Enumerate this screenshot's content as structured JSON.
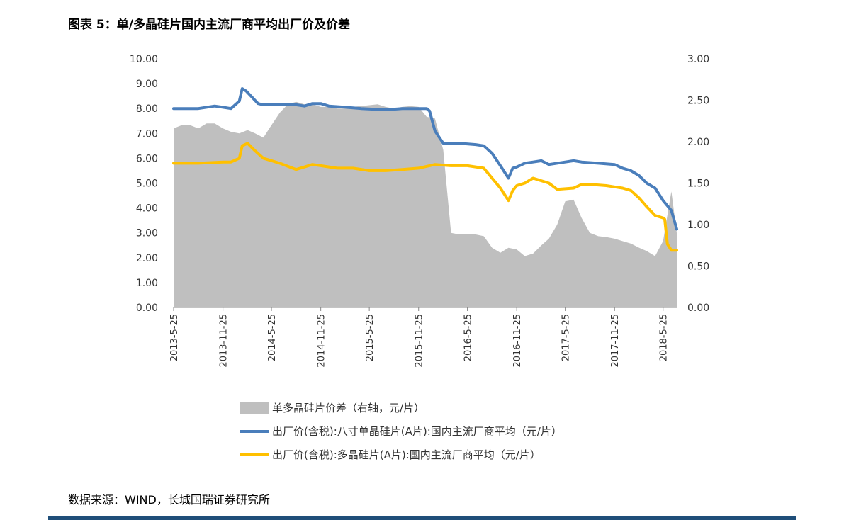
{
  "header": {
    "title": "图表 5：单/多晶硅片国内主流厂商平均出厂价及价差"
  },
  "footer": {
    "source": "数据来源：WIND，长城国瑞证券研究所"
  },
  "chart_data": {
    "type": "line",
    "x_tick_labels": [
      "2013-5-25",
      "2013-11-25",
      "2014-5-25",
      "2014-11-25",
      "2015-5-25",
      "2015-11-25",
      "2016-5-25",
      "2016-11-25",
      "2017-5-25",
      "2017-11-25",
      "2018-5-25"
    ],
    "x_start": "2013-5-25",
    "x_end": "2018-7-15",
    "y_left": {
      "min": 0,
      "max": 10,
      "ticks": [
        "0.00",
        "1.00",
        "2.00",
        "3.00",
        "4.00",
        "5.00",
        "6.00",
        "7.00",
        "8.00",
        "9.00",
        "10.00"
      ]
    },
    "y_right": {
      "min": 0,
      "max": 3,
      "ticks": [
        "0.00",
        "0.50",
        "1.00",
        "1.50",
        "2.00",
        "2.50",
        "3.00"
      ]
    },
    "legend_position": "bottom",
    "grid": false,
    "series": [
      {
        "name": "单多晶硅片价差（右轴，元/片）",
        "type": "area",
        "axis": "right",
        "color": "#bfbfbf",
        "x": [
          "2013-5-25",
          "2013-6-25",
          "2013-7-25",
          "2013-8-25",
          "2013-9-25",
          "2013-10-25",
          "2013-11-25",
          "2013-12-25",
          "2014-1-25",
          "2014-2-25",
          "2014-3-25",
          "2014-4-25",
          "2014-5-25",
          "2014-6-25",
          "2014-7-25",
          "2014-8-25",
          "2014-9-25",
          "2014-10-25",
          "2014-11-25",
          "2014-12-25",
          "2015-1-25",
          "2015-2-25",
          "2015-3-25",
          "2015-4-25",
          "2015-5-25",
          "2015-6-25",
          "2015-7-25",
          "2015-8-25",
          "2015-9-25",
          "2015-10-25",
          "2015-11-25",
          "2015-12-25",
          "2016-1-25",
          "2016-2-25",
          "2016-3-25",
          "2016-4-25",
          "2016-5-25",
          "2016-6-25",
          "2016-7-25",
          "2016-8-25",
          "2016-9-25",
          "2016-10-25",
          "2016-11-25",
          "2016-12-25",
          "2017-1-25",
          "2017-2-25",
          "2017-3-25",
          "2017-4-25",
          "2017-5-25",
          "2017-6-25",
          "2017-7-25",
          "2017-8-25",
          "2017-9-25",
          "2017-10-25",
          "2017-11-25",
          "2017-12-25",
          "2018-1-25",
          "2018-2-25",
          "2018-3-25",
          "2018-4-25",
          "2018-5-25",
          "2018-6-25",
          "2018-7-15"
        ],
        "values": [
          2.16,
          2.2,
          2.2,
          2.16,
          2.22,
          2.22,
          2.16,
          2.12,
          2.1,
          2.14,
          2.1,
          2.05,
          2.2,
          2.35,
          2.45,
          2.48,
          2.45,
          2.45,
          2.42,
          2.42,
          2.4,
          2.4,
          2.42,
          2.43,
          2.44,
          2.45,
          2.42,
          2.4,
          2.42,
          2.43,
          2.42,
          2.3,
          2.28,
          1.9,
          0.9,
          0.88,
          0.88,
          0.88,
          0.86,
          0.72,
          0.66,
          0.72,
          0.7,
          0.62,
          0.65,
          0.75,
          0.83,
          1.0,
          1.28,
          1.3,
          1.08,
          0.9,
          0.86,
          0.85,
          0.83,
          0.8,
          0.77,
          0.72,
          0.68,
          0.62,
          0.8,
          1.4,
          0.9
        ]
      },
      {
        "name": "出厂价(含税):八寸单晶硅片(A片):国内主流厂商平均（元/片）",
        "type": "line",
        "axis": "left",
        "color": "#4a7ebb",
        "x": [
          "2013-5-25",
          "2013-7-25",
          "2013-8-25",
          "2013-10-25",
          "2013-11-25",
          "2013-12-25",
          "2014-1-25",
          "2014-2-5",
          "2014-2-20",
          "2014-3-10",
          "2014-4-5",
          "2014-4-25",
          "2014-5-25",
          "2014-8-25",
          "2014-9-25",
          "2014-10-25",
          "2014-11-25",
          "2014-12-25",
          "2015-2-25",
          "2015-4-25",
          "2015-7-25",
          "2015-9-25",
          "2015-12-25",
          "2016-1-5",
          "2016-1-25",
          "2016-2-25",
          "2016-4-25",
          "2016-6-25",
          "2016-7-25",
          "2016-8-25",
          "2016-9-25",
          "2016-10-25",
          "2016-11-10",
          "2016-11-25",
          "2016-12-25",
          "2017-1-25",
          "2017-2-25",
          "2017-3-25",
          "2017-5-25",
          "2017-6-25",
          "2017-7-25",
          "2017-9-25",
          "2017-11-25",
          "2017-12-25",
          "2018-1-25",
          "2018-2-25",
          "2018-3-25",
          "2018-4-25",
          "2018-5-25",
          "2018-6-25",
          "2018-7-15"
        ],
        "values": [
          8.0,
          8.0,
          8.0,
          8.1,
          8.05,
          8.0,
          8.3,
          8.8,
          8.7,
          8.5,
          8.2,
          8.15,
          8.15,
          8.15,
          8.1,
          8.2,
          8.2,
          8.1,
          8.05,
          8.0,
          7.95,
          8.0,
          8.0,
          7.9,
          7.1,
          6.6,
          6.6,
          6.55,
          6.5,
          6.2,
          5.7,
          5.2,
          5.6,
          5.65,
          5.8,
          5.85,
          5.9,
          5.75,
          5.85,
          5.9,
          5.85,
          5.8,
          5.75,
          5.6,
          5.5,
          5.3,
          5.0,
          4.8,
          4.3,
          3.9,
          3.15
        ]
      },
      {
        "name": "出厂价(含税):多晶硅片(A片):国内主流厂商平均（元/片）",
        "type": "line",
        "axis": "left",
        "color": "#ffc000",
        "x": [
          "2013-5-25",
          "2013-8-25",
          "2013-11-25",
          "2013-12-25",
          "2014-1-25",
          "2014-2-5",
          "2014-2-25",
          "2014-3-25",
          "2014-4-25",
          "2014-6-25",
          "2014-8-25",
          "2014-9-25",
          "2014-10-25",
          "2014-11-25",
          "2015-1-25",
          "2015-3-25",
          "2015-5-25",
          "2015-7-25",
          "2015-9-25",
          "2015-11-25",
          "2016-1-25",
          "2016-3-25",
          "2016-5-25",
          "2016-7-25",
          "2016-8-25",
          "2016-9-25",
          "2016-10-25",
          "2016-11-10",
          "2016-11-25",
          "2016-12-25",
          "2017-1-25",
          "2017-3-25",
          "2017-4-25",
          "2017-6-25",
          "2017-7-25",
          "2017-8-25",
          "2017-10-25",
          "2017-11-25",
          "2017-12-25",
          "2018-1-25",
          "2018-2-25",
          "2018-3-25",
          "2018-4-25",
          "2018-5-25",
          "2018-5-31",
          "2018-6-10",
          "2018-6-25",
          "2018-7-15"
        ],
        "values": [
          5.8,
          5.8,
          5.85,
          5.85,
          6.0,
          6.5,
          6.6,
          6.3,
          6.0,
          5.8,
          5.55,
          5.65,
          5.75,
          5.7,
          5.6,
          5.6,
          5.5,
          5.5,
          5.55,
          5.6,
          5.75,
          5.7,
          5.7,
          5.6,
          5.2,
          4.8,
          4.3,
          4.7,
          4.9,
          5.0,
          5.2,
          5.0,
          4.75,
          4.8,
          4.95,
          4.95,
          4.9,
          4.85,
          4.8,
          4.7,
          4.4,
          4.05,
          3.7,
          3.6,
          3.55,
          2.55,
          2.3,
          2.3
        ]
      }
    ]
  }
}
